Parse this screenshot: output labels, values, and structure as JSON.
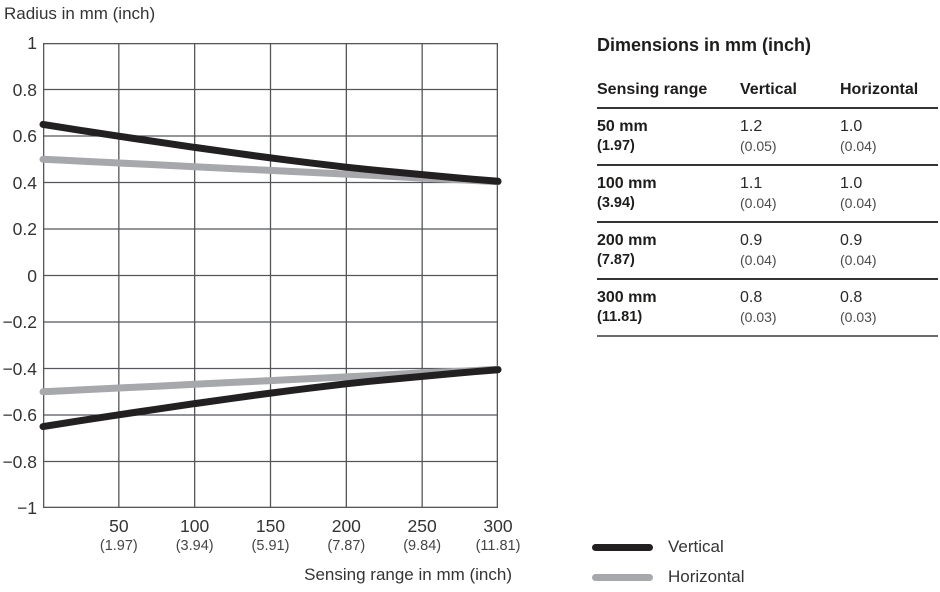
{
  "colors": {
    "vertical": "#232021",
    "horizontal": "#a6a8ab",
    "grid": "#55565a",
    "rule": "#343436",
    "background": "#ffffff"
  },
  "chart_data": {
    "type": "line",
    "title": "",
    "ylabel": "Radius in mm (inch)",
    "xlabel": "Sensing range in mm (inch)",
    "xlim": [
      0,
      300
    ],
    "ylim": [
      -1,
      1
    ],
    "grid": true,
    "legend_position": "bottom-right",
    "mirrored_about_zero": true,
    "x": [
      0,
      25,
      50,
      75,
      100,
      125,
      150,
      175,
      200,
      225,
      250,
      275,
      300
    ],
    "series": [
      {
        "name": "Vertical",
        "color_key": "vertical",
        "values": [
          0.65,
          0.624,
          0.599,
          0.575,
          0.551,
          0.528,
          0.506,
          0.485,
          0.466,
          0.449,
          0.434,
          0.419,
          0.405
        ]
      },
      {
        "name": "Horizontal",
        "color_key": "horizontal",
        "values": [
          0.5,
          0.492,
          0.484,
          0.476,
          0.468,
          0.46,
          0.452,
          0.444,
          0.436,
          0.428,
          0.419,
          0.412,
          0.403
        ]
      }
    ],
    "x_ticks": [
      {
        "v": 50,
        "label": "50",
        "sub": "(1.97)"
      },
      {
        "v": 100,
        "label": "100",
        "sub": "(3.94)"
      },
      {
        "v": 150,
        "label": "150",
        "sub": "(5.91)"
      },
      {
        "v": 200,
        "label": "200",
        "sub": "(7.87)"
      },
      {
        "v": 250,
        "label": "250",
        "sub": "(9.84)"
      },
      {
        "v": 300,
        "label": "300",
        "sub": "(11.81)"
      }
    ],
    "y_ticks": [
      {
        "v": 1,
        "label": "1"
      },
      {
        "v": 0.8,
        "label": "0.8"
      },
      {
        "v": 0.6,
        "label": "0.6"
      },
      {
        "v": 0.4,
        "label": "0.4"
      },
      {
        "v": 0.2,
        "label": "0.2"
      },
      {
        "v": 0,
        "label": "0"
      },
      {
        "v": -0.2,
        "label": "−0.2"
      },
      {
        "v": -0.4,
        "label": "−0.4"
      },
      {
        "v": -0.6,
        "label": "−0.6"
      },
      {
        "v": -0.8,
        "label": "−0.8"
      },
      {
        "v": -1,
        "label": "−1"
      }
    ]
  },
  "table": {
    "title": "Dimensions in mm (inch)",
    "columns": [
      "Sensing range",
      "Vertical",
      "Horizontal"
    ],
    "rows": [
      {
        "range": "50 mm",
        "range_sub": "(1.97)",
        "vertical": "1.2",
        "vertical_sub": "(0.05)",
        "horizontal": "1.0",
        "horizontal_sub": "(0.04)"
      },
      {
        "range": "100 mm",
        "range_sub": "(3.94)",
        "vertical": "1.1",
        "vertical_sub": "(0.04)",
        "horizontal": "1.0",
        "horizontal_sub": "(0.04)"
      },
      {
        "range": "200 mm",
        "range_sub": "(7.87)",
        "vertical": "0.9",
        "vertical_sub": "(0.04)",
        "horizontal": "0.9",
        "horizontal_sub": "(0.04)"
      },
      {
        "range": "300 mm",
        "range_sub": "(11.81)",
        "vertical": "0.8",
        "vertical_sub": "(0.03)",
        "horizontal": "0.8",
        "horizontal_sub": "(0.03)"
      }
    ]
  },
  "legend": {
    "items": [
      {
        "label": "Vertical",
        "color_key": "vertical"
      },
      {
        "label": "Horizontal",
        "color_key": "horizontal"
      }
    ]
  }
}
